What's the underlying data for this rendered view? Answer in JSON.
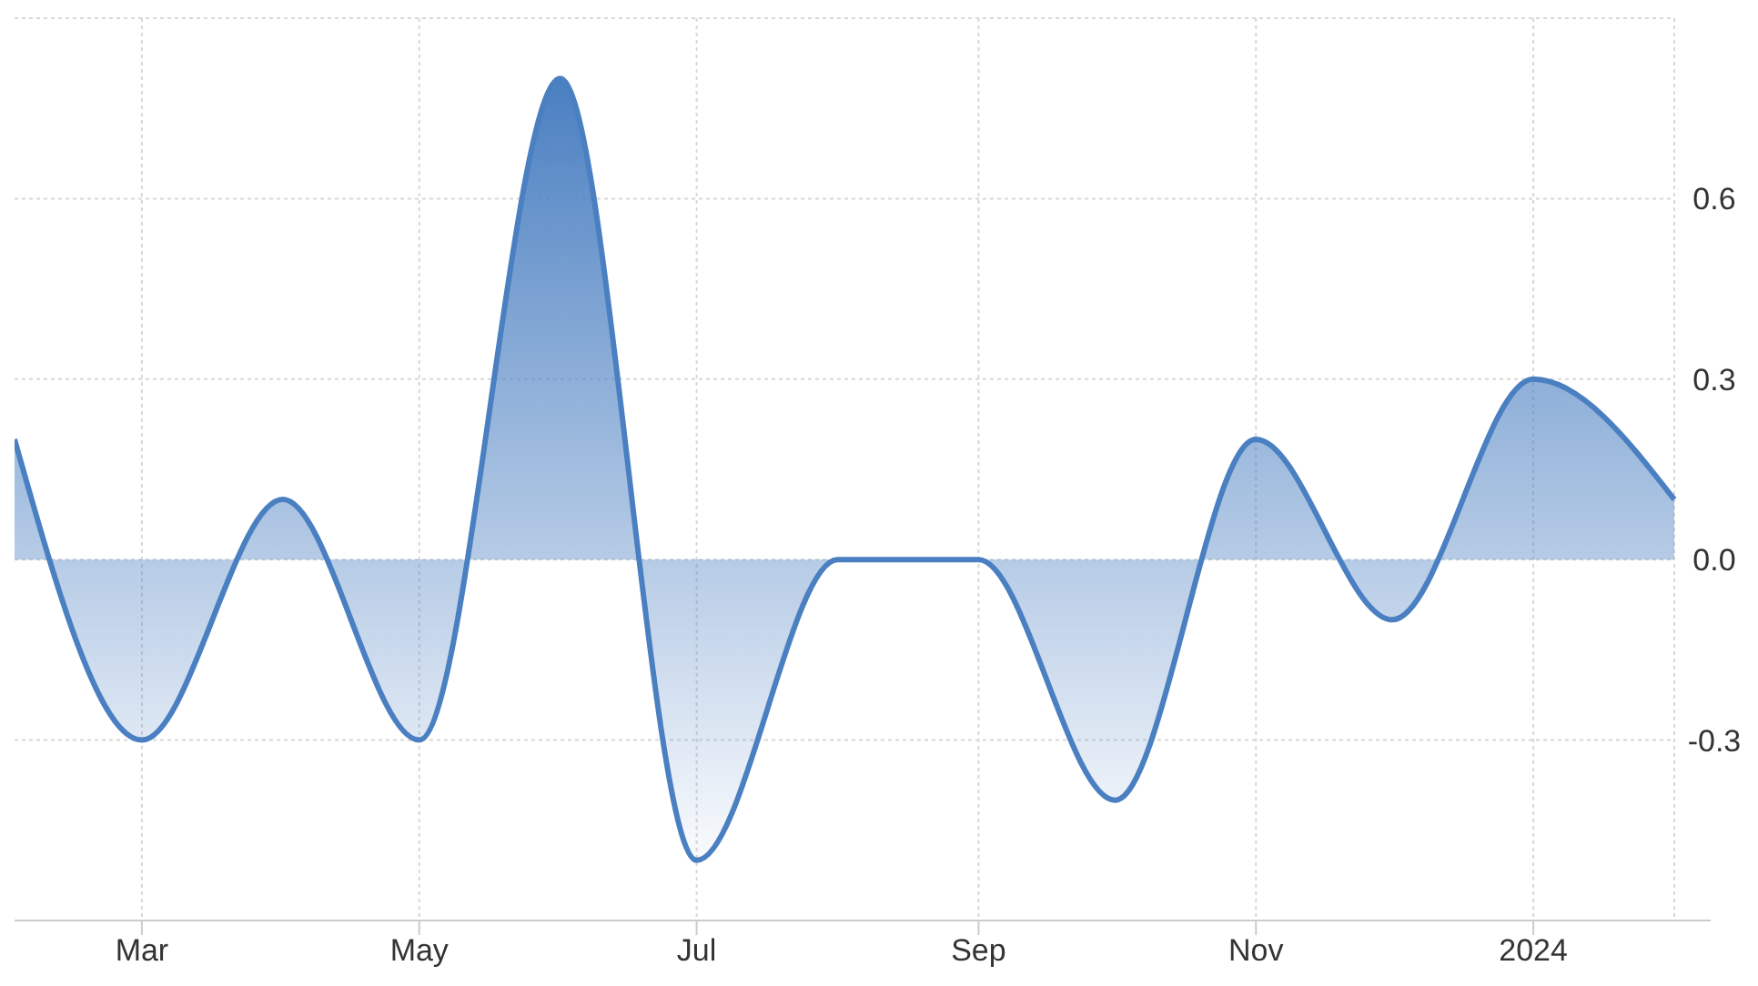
{
  "chart_data": {
    "type": "area",
    "x": [
      "2023-02",
      "2023-03",
      "2023-04",
      "2023-05",
      "2023-06",
      "2023-07",
      "2023-08",
      "2023-09",
      "2023-10",
      "2023-11",
      "2023-12",
      "2024-01",
      "2024-02"
    ],
    "series": [
      {
        "color": "#4a7fc1",
        "values": [
          0.2,
          -0.3,
          0.1,
          -0.3,
          0.8,
          -0.5,
          0.0,
          0.0,
          -0.4,
          0.2,
          -0.1,
          0.3,
          0.1
        ]
      }
    ],
    "xlim": [
      "2023-02",
      "2024-02"
    ],
    "xticks": [
      {
        "value": "2023-03",
        "label": "Mar"
      },
      {
        "value": "2023-05",
        "label": "May"
      },
      {
        "value": "2023-07",
        "label": "Jul"
      },
      {
        "value": "2023-09",
        "label": "Sep"
      },
      {
        "value": "2023-11",
        "label": "Nov"
      },
      {
        "value": "2024-01",
        "label": "2024"
      }
    ],
    "ylim": [
      -0.6,
      0.9
    ],
    "yticks": [
      {
        "value": -0.3,
        "label": "-0.3"
      },
      {
        "value": 0,
        "label": "0.0"
      },
      {
        "value": 0.3,
        "label": "0.3"
      },
      {
        "value": 0.6,
        "label": "0.6"
      }
    ],
    "grid": true
  }
}
